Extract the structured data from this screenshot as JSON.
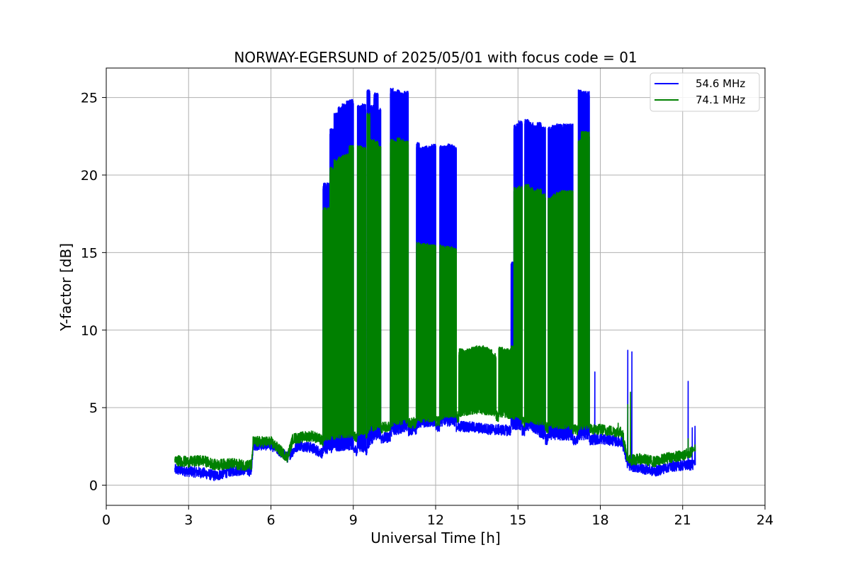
{
  "chart_data": {
    "type": "line",
    "title": "NORWAY-EGERSUND of 2025/05/01 with focus code = 01",
    "xlabel": "Universal Time [h]",
    "ylabel": "Y-factor [dB]",
    "xlim": [
      0,
      24
    ],
    "ylim": [
      -1.3,
      26.9
    ],
    "xticks": [
      0,
      3,
      6,
      9,
      12,
      15,
      18,
      21,
      24
    ],
    "yticks": [
      0,
      5,
      10,
      15,
      20,
      25
    ],
    "grid": true,
    "legend_position": "top-right",
    "series": [
      {
        "name": "54.6 MHz",
        "color": "#0000ff",
        "baseline": [
          [
            2.5,
            1.0
          ],
          [
            3.0,
            0.9
          ],
          [
            3.5,
            0.8
          ],
          [
            4.0,
            0.6
          ],
          [
            4.5,
            0.9
          ],
          [
            5.0,
            1.0
          ],
          [
            5.3,
            0.9
          ],
          [
            5.35,
            2.6
          ],
          [
            6.0,
            2.6
          ],
          [
            6.6,
            1.8
          ],
          [
            7.0,
            2.6
          ],
          [
            7.5,
            2.4
          ],
          [
            7.95,
            2.0
          ],
          [
            8.5,
            2.2
          ],
          [
            9.0,
            2.3
          ],
          [
            9.4,
            2.1
          ],
          [
            9.8,
            2.9
          ],
          [
            10.5,
            3.2
          ],
          [
            11.0,
            3.5
          ],
          [
            11.5,
            3.7
          ],
          [
            12.0,
            3.8
          ],
          [
            13.0,
            3.8
          ],
          [
            14.0,
            3.6
          ],
          [
            15.0,
            3.5
          ],
          [
            15.5,
            3.5
          ],
          [
            15.8,
            3.0
          ],
          [
            16.5,
            2.9
          ],
          [
            17.5,
            2.9
          ],
          [
            18.0,
            3.0
          ],
          [
            18.8,
            2.8
          ],
          [
            19.0,
            1.3
          ],
          [
            19.5,
            1.1
          ],
          [
            20.0,
            0.9
          ],
          [
            20.5,
            1.2
          ],
          [
            21.0,
            1.3
          ],
          [
            21.4,
            1.3
          ]
        ],
        "peaks": [
          {
            "start": 7.9,
            "end": 8.15,
            "value": 19.5
          },
          {
            "start": 8.15,
            "end": 8.3,
            "value": 23.0
          },
          {
            "start": 8.3,
            "end": 8.45,
            "value": 24.0
          },
          {
            "start": 8.45,
            "end": 8.6,
            "value": 24.4
          },
          {
            "start": 8.6,
            "end": 8.75,
            "value": 24.6
          },
          {
            "start": 8.75,
            "end": 8.85,
            "value": 24.8
          },
          {
            "start": 8.85,
            "end": 9.0,
            "value": 24.9
          },
          {
            "start": 9.15,
            "end": 9.3,
            "value": 24.5
          },
          {
            "start": 9.3,
            "end": 9.45,
            "value": 24.6
          },
          {
            "start": 9.5,
            "end": 9.6,
            "value": 25.5
          },
          {
            "start": 9.6,
            "end": 9.75,
            "value": 24.5
          },
          {
            "start": 9.75,
            "end": 9.9,
            "value": 25.3
          },
          {
            "start": 9.9,
            "end": 10.0,
            "value": 24.3
          },
          {
            "start": 10.35,
            "end": 10.45,
            "value": 25.6
          },
          {
            "start": 10.45,
            "end": 10.6,
            "value": 25.4
          },
          {
            "start": 10.6,
            "end": 10.7,
            "value": 25.5
          },
          {
            "start": 10.7,
            "end": 10.85,
            "value": 25.3
          },
          {
            "start": 10.85,
            "end": 11.0,
            "value": 25.4
          },
          {
            "start": 11.3,
            "end": 11.4,
            "value": 22.1
          },
          {
            "start": 11.4,
            "end": 11.55,
            "value": 21.8
          },
          {
            "start": 11.55,
            "end": 11.7,
            "value": 21.9
          },
          {
            "start": 11.7,
            "end": 11.85,
            "value": 21.9
          },
          {
            "start": 11.85,
            "end": 12.0,
            "value": 22.0
          },
          {
            "start": 12.15,
            "end": 12.3,
            "value": 21.9
          },
          {
            "start": 12.3,
            "end": 12.45,
            "value": 21.9
          },
          {
            "start": 12.45,
            "end": 12.6,
            "value": 22.0
          },
          {
            "start": 12.6,
            "end": 12.75,
            "value": 21.9
          },
          {
            "start": 14.75,
            "end": 14.85,
            "value": 14.4
          },
          {
            "start": 14.85,
            "end": 15.0,
            "value": 23.3
          },
          {
            "start": 15.0,
            "end": 15.15,
            "value": 23.5
          },
          {
            "start": 15.25,
            "end": 15.4,
            "value": 23.6
          },
          {
            "start": 15.4,
            "end": 15.55,
            "value": 23.4
          },
          {
            "start": 15.55,
            "end": 15.7,
            "value": 23.2
          },
          {
            "start": 15.7,
            "end": 15.85,
            "value": 23.4
          },
          {
            "start": 15.85,
            "end": 16.0,
            "value": 23.1
          },
          {
            "start": 16.1,
            "end": 16.25,
            "value": 23.1
          },
          {
            "start": 16.25,
            "end": 16.4,
            "value": 23.2
          },
          {
            "start": 16.4,
            "end": 16.55,
            "value": 23.3
          },
          {
            "start": 16.55,
            "end": 16.7,
            "value": 23.3
          },
          {
            "start": 16.7,
            "end": 16.85,
            "value": 23.3
          },
          {
            "start": 16.85,
            "end": 17.0,
            "value": 23.3
          },
          {
            "start": 17.2,
            "end": 17.3,
            "value": 25.5
          },
          {
            "start": 17.3,
            "end": 17.45,
            "value": 25.4
          },
          {
            "start": 17.45,
            "end": 17.6,
            "value": 25.4
          }
        ],
        "spikes": [
          [
            17.8,
            7.3
          ],
          [
            19.0,
            8.7
          ],
          [
            19.15,
            8.6
          ],
          [
            21.2,
            6.7
          ],
          [
            21.35,
            3.7
          ],
          [
            21.45,
            3.8
          ]
        ]
      },
      {
        "name": "74.1 MHz",
        "color": "#008000",
        "baseline": [
          [
            2.5,
            1.6
          ],
          [
            3.0,
            1.5
          ],
          [
            3.5,
            1.6
          ],
          [
            4.0,
            1.3
          ],
          [
            4.5,
            1.4
          ],
          [
            5.0,
            1.3
          ],
          [
            5.3,
            1.3
          ],
          [
            5.35,
            2.8
          ],
          [
            6.0,
            2.8
          ],
          [
            6.6,
            1.8
          ],
          [
            6.8,
            3.0
          ],
          [
            7.5,
            3.2
          ],
          [
            7.95,
            2.8
          ],
          [
            8.5,
            3.0
          ],
          [
            9.0,
            3.1
          ],
          [
            9.5,
            3.3
          ],
          [
            10.0,
            3.7
          ],
          [
            10.5,
            3.8
          ],
          [
            11.0,
            4.0
          ],
          [
            12.0,
            4.1
          ],
          [
            12.8,
            4.4
          ],
          [
            13.5,
            4.6
          ],
          [
            14.0,
            4.5
          ],
          [
            15.0,
            4.2
          ],
          [
            15.8,
            3.8
          ],
          [
            16.5,
            3.6
          ],
          [
            17.0,
            3.6
          ],
          [
            18.0,
            3.6
          ],
          [
            18.8,
            3.4
          ],
          [
            19.0,
            1.6
          ],
          [
            19.5,
            1.7
          ],
          [
            20.0,
            1.5
          ],
          [
            20.5,
            1.8
          ],
          [
            21.0,
            1.9
          ],
          [
            21.4,
            2.2
          ]
        ],
        "peaks": [
          {
            "start": 7.9,
            "end": 8.15,
            "value": 17.9
          },
          {
            "start": 8.15,
            "end": 8.3,
            "value": 20.5
          },
          {
            "start": 8.3,
            "end": 8.45,
            "value": 21.0
          },
          {
            "start": 8.45,
            "end": 8.6,
            "value": 21.2
          },
          {
            "start": 8.6,
            "end": 8.75,
            "value": 21.3
          },
          {
            "start": 8.75,
            "end": 8.85,
            "value": 21.4
          },
          {
            "start": 8.85,
            "end": 9.0,
            "value": 21.9
          },
          {
            "start": 9.15,
            "end": 9.3,
            "value": 21.9
          },
          {
            "start": 9.3,
            "end": 9.45,
            "value": 21.8
          },
          {
            "start": 9.5,
            "end": 9.6,
            "value": 24.0
          },
          {
            "start": 9.6,
            "end": 9.75,
            "value": 22.3
          },
          {
            "start": 9.75,
            "end": 9.9,
            "value": 22.2
          },
          {
            "start": 9.9,
            "end": 10.0,
            "value": 21.9
          },
          {
            "start": 10.35,
            "end": 10.45,
            "value": 22.3
          },
          {
            "start": 10.45,
            "end": 10.6,
            "value": 22.2
          },
          {
            "start": 10.6,
            "end": 10.7,
            "value": 22.4
          },
          {
            "start": 10.7,
            "end": 10.85,
            "value": 22.3
          },
          {
            "start": 10.85,
            "end": 11.0,
            "value": 22.2
          },
          {
            "start": 11.3,
            "end": 11.4,
            "value": 15.7
          },
          {
            "start": 11.4,
            "end": 11.55,
            "value": 15.6
          },
          {
            "start": 11.55,
            "end": 11.7,
            "value": 15.6
          },
          {
            "start": 11.7,
            "end": 11.85,
            "value": 15.5
          },
          {
            "start": 11.85,
            "end": 12.0,
            "value": 15.5
          },
          {
            "start": 12.15,
            "end": 12.3,
            "value": 15.5
          },
          {
            "start": 12.3,
            "end": 12.45,
            "value": 15.4
          },
          {
            "start": 12.45,
            "end": 12.6,
            "value": 15.4
          },
          {
            "start": 12.6,
            "end": 12.75,
            "value": 15.3
          },
          {
            "start": 12.85,
            "end": 13.0,
            "value": 8.8
          },
          {
            "start": 13.0,
            "end": 13.15,
            "value": 8.7
          },
          {
            "start": 13.15,
            "end": 13.3,
            "value": 8.8
          },
          {
            "start": 13.3,
            "end": 13.45,
            "value": 8.9
          },
          {
            "start": 13.45,
            "end": 13.6,
            "value": 9.0
          },
          {
            "start": 13.6,
            "end": 13.75,
            "value": 9.0
          },
          {
            "start": 13.75,
            "end": 13.9,
            "value": 8.9
          },
          {
            "start": 13.9,
            "end": 14.05,
            "value": 8.8
          },
          {
            "start": 14.05,
            "end": 14.2,
            "value": 8.5
          },
          {
            "start": 14.3,
            "end": 14.45,
            "value": 8.9
          },
          {
            "start": 14.45,
            "end": 14.6,
            "value": 8.8
          },
          {
            "start": 14.6,
            "end": 14.75,
            "value": 8.8
          },
          {
            "start": 14.75,
            "end": 14.85,
            "value": 9.0
          },
          {
            "start": 14.85,
            "end": 15.0,
            "value": 19.2
          },
          {
            "start": 15.0,
            "end": 15.15,
            "value": 19.3
          },
          {
            "start": 15.25,
            "end": 15.4,
            "value": 19.4
          },
          {
            "start": 15.4,
            "end": 15.55,
            "value": 19.2
          },
          {
            "start": 15.55,
            "end": 15.7,
            "value": 19.0
          },
          {
            "start": 15.7,
            "end": 15.85,
            "value": 19.1
          },
          {
            "start": 15.85,
            "end": 16.0,
            "value": 18.8
          },
          {
            "start": 16.1,
            "end": 16.25,
            "value": 18.6
          },
          {
            "start": 16.25,
            "end": 16.4,
            "value": 18.8
          },
          {
            "start": 16.4,
            "end": 16.55,
            "value": 18.9
          },
          {
            "start": 16.55,
            "end": 16.7,
            "value": 19.0
          },
          {
            "start": 16.7,
            "end": 16.85,
            "value": 19.0
          },
          {
            "start": 16.85,
            "end": 17.0,
            "value": 19.0
          },
          {
            "start": 17.2,
            "end": 17.3,
            "value": 22.3
          },
          {
            "start": 17.3,
            "end": 17.45,
            "value": 22.8
          },
          {
            "start": 17.45,
            "end": 17.6,
            "value": 22.8
          }
        ],
        "spikes": [
          [
            18.65,
            4.0
          ],
          [
            19.0,
            5.2
          ],
          [
            19.1,
            6.0
          ],
          [
            21.2,
            3.0
          ],
          [
            21.45,
            2.6
          ]
        ]
      }
    ]
  }
}
